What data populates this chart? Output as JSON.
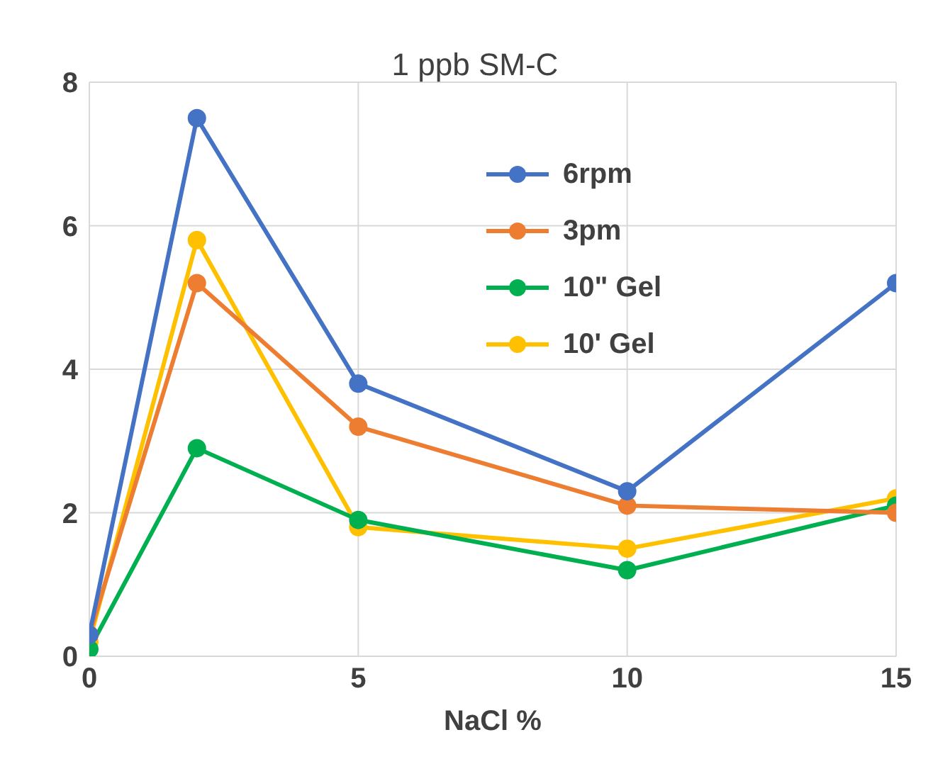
{
  "chart_data": {
    "type": "line",
    "title": "1 ppb SM-C",
    "xlabel": "NaCl %",
    "x": [
      0,
      2,
      5,
      10,
      15
    ],
    "series": [
      {
        "name": "6rpm",
        "color": "#4472c4",
        "values": [
          0.3,
          7.5,
          3.8,
          2.3,
          5.2
        ]
      },
      {
        "name": "3pm",
        "color": "#ed7d31",
        "values": [
          0.3,
          5.2,
          3.2,
          2.1,
          2.0
        ]
      },
      {
        "name": "10\" Gel",
        "color": "#00b050",
        "values": [
          0.1,
          2.9,
          1.9,
          1.2,
          2.1
        ]
      },
      {
        "name": "10' Gel",
        "color": "#ffc000",
        "values": [
          0.2,
          5.8,
          1.8,
          1.5,
          2.2
        ]
      }
    ],
    "xlim": [
      0,
      15
    ],
    "xticks": [
      0,
      5,
      10,
      15
    ],
    "ylim": [
      0,
      8
    ],
    "yticks": [
      0,
      2,
      4,
      6,
      8
    ],
    "grid": true,
    "legend": "top right",
    "marker": "circle",
    "line_style": "solid"
  }
}
